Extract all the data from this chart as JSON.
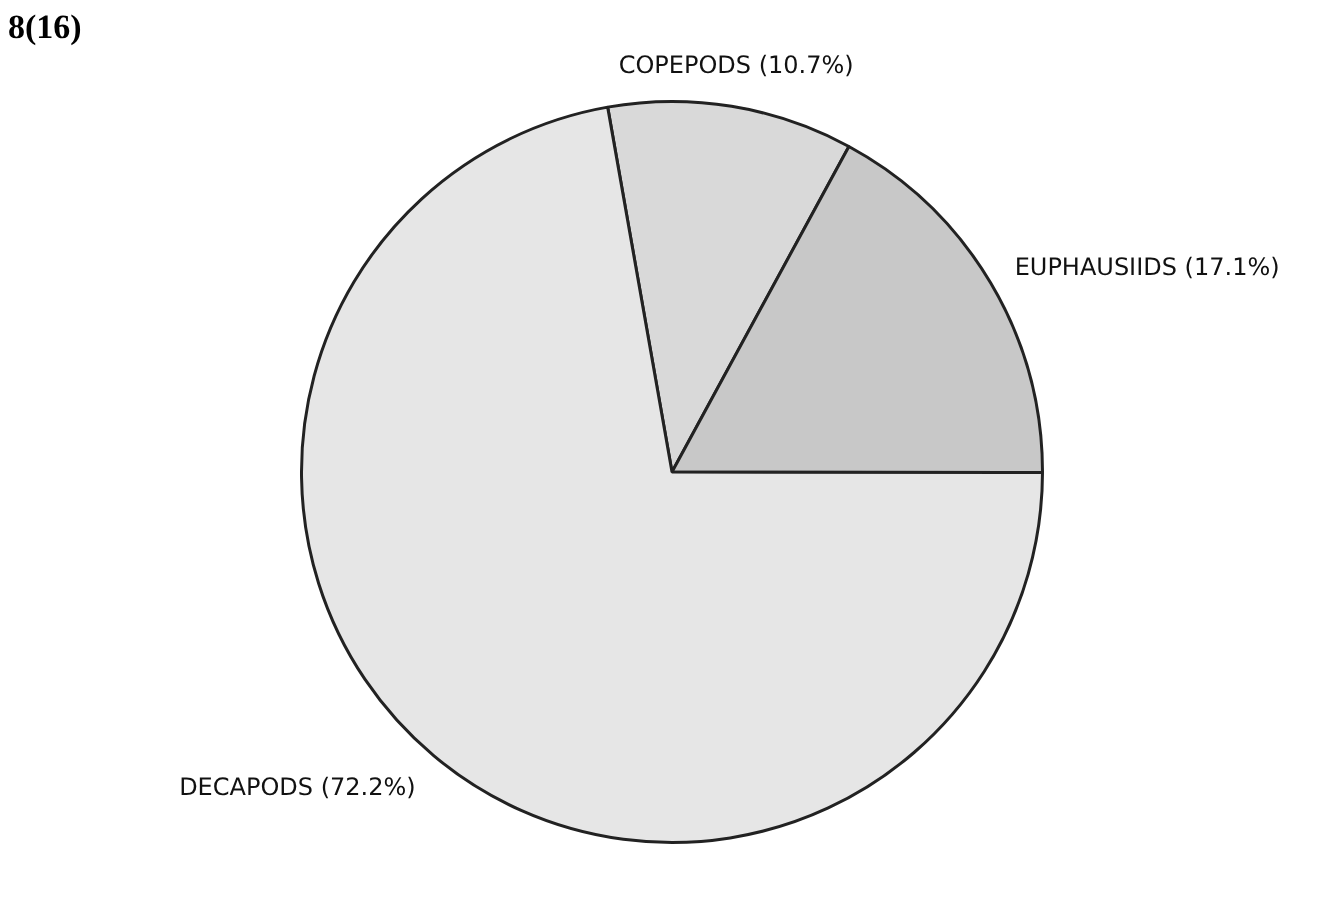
{
  "chart_data": {
    "type": "pie",
    "title": "8(16)",
    "categories": [
      "COPEPODS",
      "EUPHAUSIIDS",
      "DECAPODS"
    ],
    "values": [
      10.7,
      17.1,
      72.2
    ],
    "value_labels": [
      "(10.7%)",
      "(17.1%)",
      "(72.2%)"
    ],
    "colors": [
      "#d9d9d9",
      "#c8c8c8",
      "#e6e6e6"
    ],
    "legend": false
  }
}
